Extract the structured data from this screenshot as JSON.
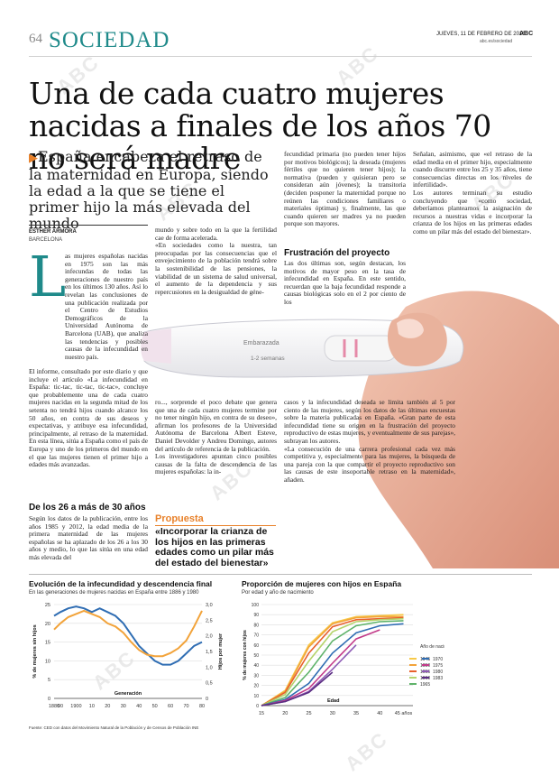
{
  "header": {
    "page_number": "64",
    "section": "SOCIEDAD",
    "date": "JUEVES, 11 DE FEBRERO DE 2016",
    "brand": "ABC",
    "url": "abc.es/sociedad"
  },
  "headline": "Una de cada cuatro mujeres nacidas a finales de los años 70 no será madre",
  "subhead": "España encabeza el retraso de la maternidad en Europa, siendo la edad a la que se tiene el primer hijo la más elevada del mundo",
  "byline": {
    "author": "ESTHER ARMORA",
    "place": "BARCELONA"
  },
  "article": {
    "dropcap": "L",
    "col1_top": "as mujeres españolas nacidas en 1975 son las más infecundas de todas las generaciones de nuestro país en los últimos 130 años. Así lo revelan las conclusiones de una publicación realizada por el Centro de Estudios Demográficos de la Universidad Autónoma de Barcelona (UAB), que analiza las tendencias y posibles causas de la infecundidad en nuestro país.",
    "col1_mid": "El informe, consultado por este diario y que incluye el artículo «La infecundidad en España: tic-tac, tic-tac, tic-tac», concluye que probablemente una de cada cuatro mujeres nacidas en la segunda mitad de los setenta no tendrá hijos cuando alcance los 50 años, en contra de sus deseos y expectativas, y atribuye esa infecundidad, principalmente, al retraso de la maternidad. En esta línea, sitúa a España como el país de Europa y uno de los primeros del mundo en el que las mujeres tienen el primer hijo a edades más avanzadas.",
    "subtitle_1": "De los 26 a más de 30 años",
    "col1_end": "Según los datos de la publicación, entre los años 1985 y 2012, la edad media de la primera maternidad de las mujeres españolas se ha aplazado de los 26 a los 30 años y medio, lo que las sitúa en una edad más elevada del",
    "col2_top": "mundo y sobre todo en la que la fertilidad cae de forma acelerada.\n«En sociedades como la nuestra, tan preocupadas por las consecuencias que el envejecimiento de la población tendrá sobre la sostenibilidad de las pensiones, la viabilidad de un sistema de salud universal, el aumento de la dependencia y sus repercusiones en la desigualdad de géne-",
    "col2_mid": "ro..., sorprende el poco debate que genera que una de cada cuatro mujeres termine por no tener ningún hijo, en contra de su deseo», afirman los profesores de la Universidad Autónoma de Barcelona Albert Esteve, Daniel Devolder y Andreu Domingo, autores del artículo de referencia de la publicación.\nLos investigadores apuntan cinco posibles causas de la falta de descendencia de las mujeres españolas: la in-",
    "pull_label": "Propuesta",
    "pull_quote": "«Incorporar la crianza de los hijos en las primeras edades como un pilar más del estado del bienestar»",
    "col3_top": "fecundidad primaria (no pueden tener hijos por motivos biológicos); la deseada (mujeres fértiles que no quieren tener hijos); la normativa (pueden y quisieran pero se consideran aún jóvenes); la transitoria (deciden posponer la maternidad porque no reúnen las condiciones familiares o materiales óptimas) y, finalmente, las que cuando quieren ser madres ya no pueden porque son mayores.",
    "subtitle_2": "Frustración del proyecto",
    "col3_mid": "Las dos últimas son, según destacan, los motivos de mayor peso en la tasa de infecundidad en España. En este sentido, recuerdan que la baja fecundidad responde a causas biológicas solo en el 2 por ciento de los",
    "col3_low": "casos y la infecundidad deseada se limita también al 5 por ciento de las mujeres, según los datos de las últimas encuestas sobre la materia publicadas en España. «Gran parte de esta infecundidad tiene su origen en la frustración del proyecto reproductivo de estas mujeres, y eventualmente de sus parejas», subrayan los autores.\n«La consecución de una carrera profesional cada vez más competitiva y, especialmente para las mujeres, la búsqueda de una pareja con la que compartir el proyecto reproductivo son las causas de este insoportable retraso en la maternidad», añaden.",
    "col4_top": "Señalan, asimismo, que «el retraso de la edad media en el primer hijo, especialmente cuando discurre entre los 25 y 35 años, tiene consecuencias directas en los niveles de infertilidad».\nLos autores terminan su estudio concluyendo que «como sociedad, deberíamos plantearnos la asignación de recursos a nuestras vidas e incorporar la crianza de los hijos en las primeras edades como un pilar más del estado del bienestar»."
  },
  "photo": {
    "test_label_1": "Embarazada",
    "test_label_2": "1-2 semanas"
  },
  "watermark": "ABC",
  "source_note": "Fuente: CED con datos del Movimiento Natural de la Población y de Censos de Población INE",
  "chart_data": [
    {
      "type": "line",
      "title": "Evolución de la infecundidad y descendencia final",
      "subtitle": "En las generaciones de mujeres nacidas en España entre 1886 y 1980",
      "xlabel": "Generación",
      "ylabel": "% de mujeres sin hijos",
      "ylabel_right": "Hijos por mujer",
      "x_ticks": [
        "1886",
        "90",
        "1900",
        "10",
        "20",
        "30",
        "40",
        "50",
        "60",
        "70",
        "80"
      ],
      "y_ticks": [
        "0",
        "5",
        "10",
        "15",
        "20",
        "25"
      ],
      "y_ticks_right": [
        "0",
        "0,5",
        "1,0",
        "1,5",
        "2,0",
        "2,5",
        "3,0"
      ],
      "ylim": [
        0,
        25
      ],
      "ylim_right": [
        0,
        3.0
      ],
      "x": [
        1886,
        1890,
        1895,
        1900,
        1905,
        1910,
        1915,
        1920,
        1925,
        1930,
        1935,
        1940,
        1945,
        1950,
        1955,
        1960,
        1965,
        1970,
        1975,
        1980
      ],
      "series": [
        {
          "axis": "left",
          "color": "#2f6db3",
          "values": [
            22,
            23,
            24,
            24.5,
            24,
            23,
            24,
            23,
            22,
            20,
            17,
            14,
            12,
            10,
            9,
            9,
            10,
            12,
            14,
            15
          ]
        },
        {
          "axis": "right",
          "color": "#f2a33a",
          "values": [
            2.2,
            2.4,
            2.6,
            2.7,
            2.8,
            2.7,
            2.6,
            2.4,
            2.3,
            2.1,
            1.8,
            1.55,
            1.4,
            1.35,
            1.35,
            1.45,
            1.6,
            1.85,
            2.3,
            2.8
          ]
        }
      ]
    },
    {
      "type": "line",
      "title": "Proporción de mujeres con hijos en España",
      "subtitle": "Por edad y año de nacimiento",
      "xlabel": "Edad",
      "ylabel": "% de mujeres con hijos",
      "x_ticks": [
        "15",
        "20",
        "25",
        "30",
        "35",
        "40",
        "45 años"
      ],
      "y_ticks": [
        "0",
        "10",
        "20",
        "30",
        "40",
        "50",
        "60",
        "70",
        "80",
        "90",
        "100"
      ],
      "ylim": [
        0,
        100
      ],
      "xlim": [
        15,
        47
      ],
      "legend_title": "Año de nacimiento",
      "legend_position": "right",
      "series": [
        {
          "name": "1945",
          "color": "#f7c948",
          "x": [
            15,
            20,
            25,
            30,
            35,
            40,
            45
          ],
          "values": [
            0,
            15,
            60,
            82,
            88,
            89,
            90
          ]
        },
        {
          "name": "1950",
          "color": "#f2a33a",
          "x": [
            15,
            20,
            25,
            30,
            35,
            40,
            45
          ],
          "values": [
            0,
            14,
            58,
            81,
            87,
            88,
            88
          ]
        },
        {
          "name": "1955",
          "color": "#e8602c",
          "x": [
            15,
            20,
            25,
            30,
            35,
            40,
            45
          ],
          "values": [
            0,
            13,
            52,
            78,
            85,
            86,
            87
          ]
        },
        {
          "name": "1960",
          "color": "#b5d36b",
          "x": [
            15,
            20,
            25,
            30,
            35,
            40,
            45
          ],
          "values": [
            0,
            11,
            44,
            73,
            83,
            85,
            86
          ]
        },
        {
          "name": "1965",
          "color": "#5fb36a",
          "x": [
            15,
            20,
            25,
            30,
            35,
            40,
            45
          ],
          "values": [
            0,
            8,
            33,
            64,
            79,
            83,
            84
          ]
        },
        {
          "name": "1970",
          "color": "#2f6db3",
          "x": [
            15,
            20,
            25,
            30,
            35,
            40,
            45
          ],
          "values": [
            0,
            6,
            22,
            52,
            72,
            79,
            81
          ]
        },
        {
          "name": "1975",
          "color": "#c23b8a",
          "x": [
            15,
            20,
            25,
            30,
            35,
            40
          ],
          "values": [
            0,
            5,
            17,
            42,
            66,
            75
          ]
        },
        {
          "name": "1980",
          "color": "#8e5bb5",
          "x": [
            15,
            20,
            25,
            30,
            35
          ],
          "values": [
            0,
            4,
            14,
            36,
            60
          ]
        },
        {
          "name": "1983",
          "color": "#5a2d82",
          "x": [
            15,
            20,
            25,
            30
          ],
          "values": [
            0,
            4,
            13,
            33
          ]
        }
      ]
    }
  ]
}
